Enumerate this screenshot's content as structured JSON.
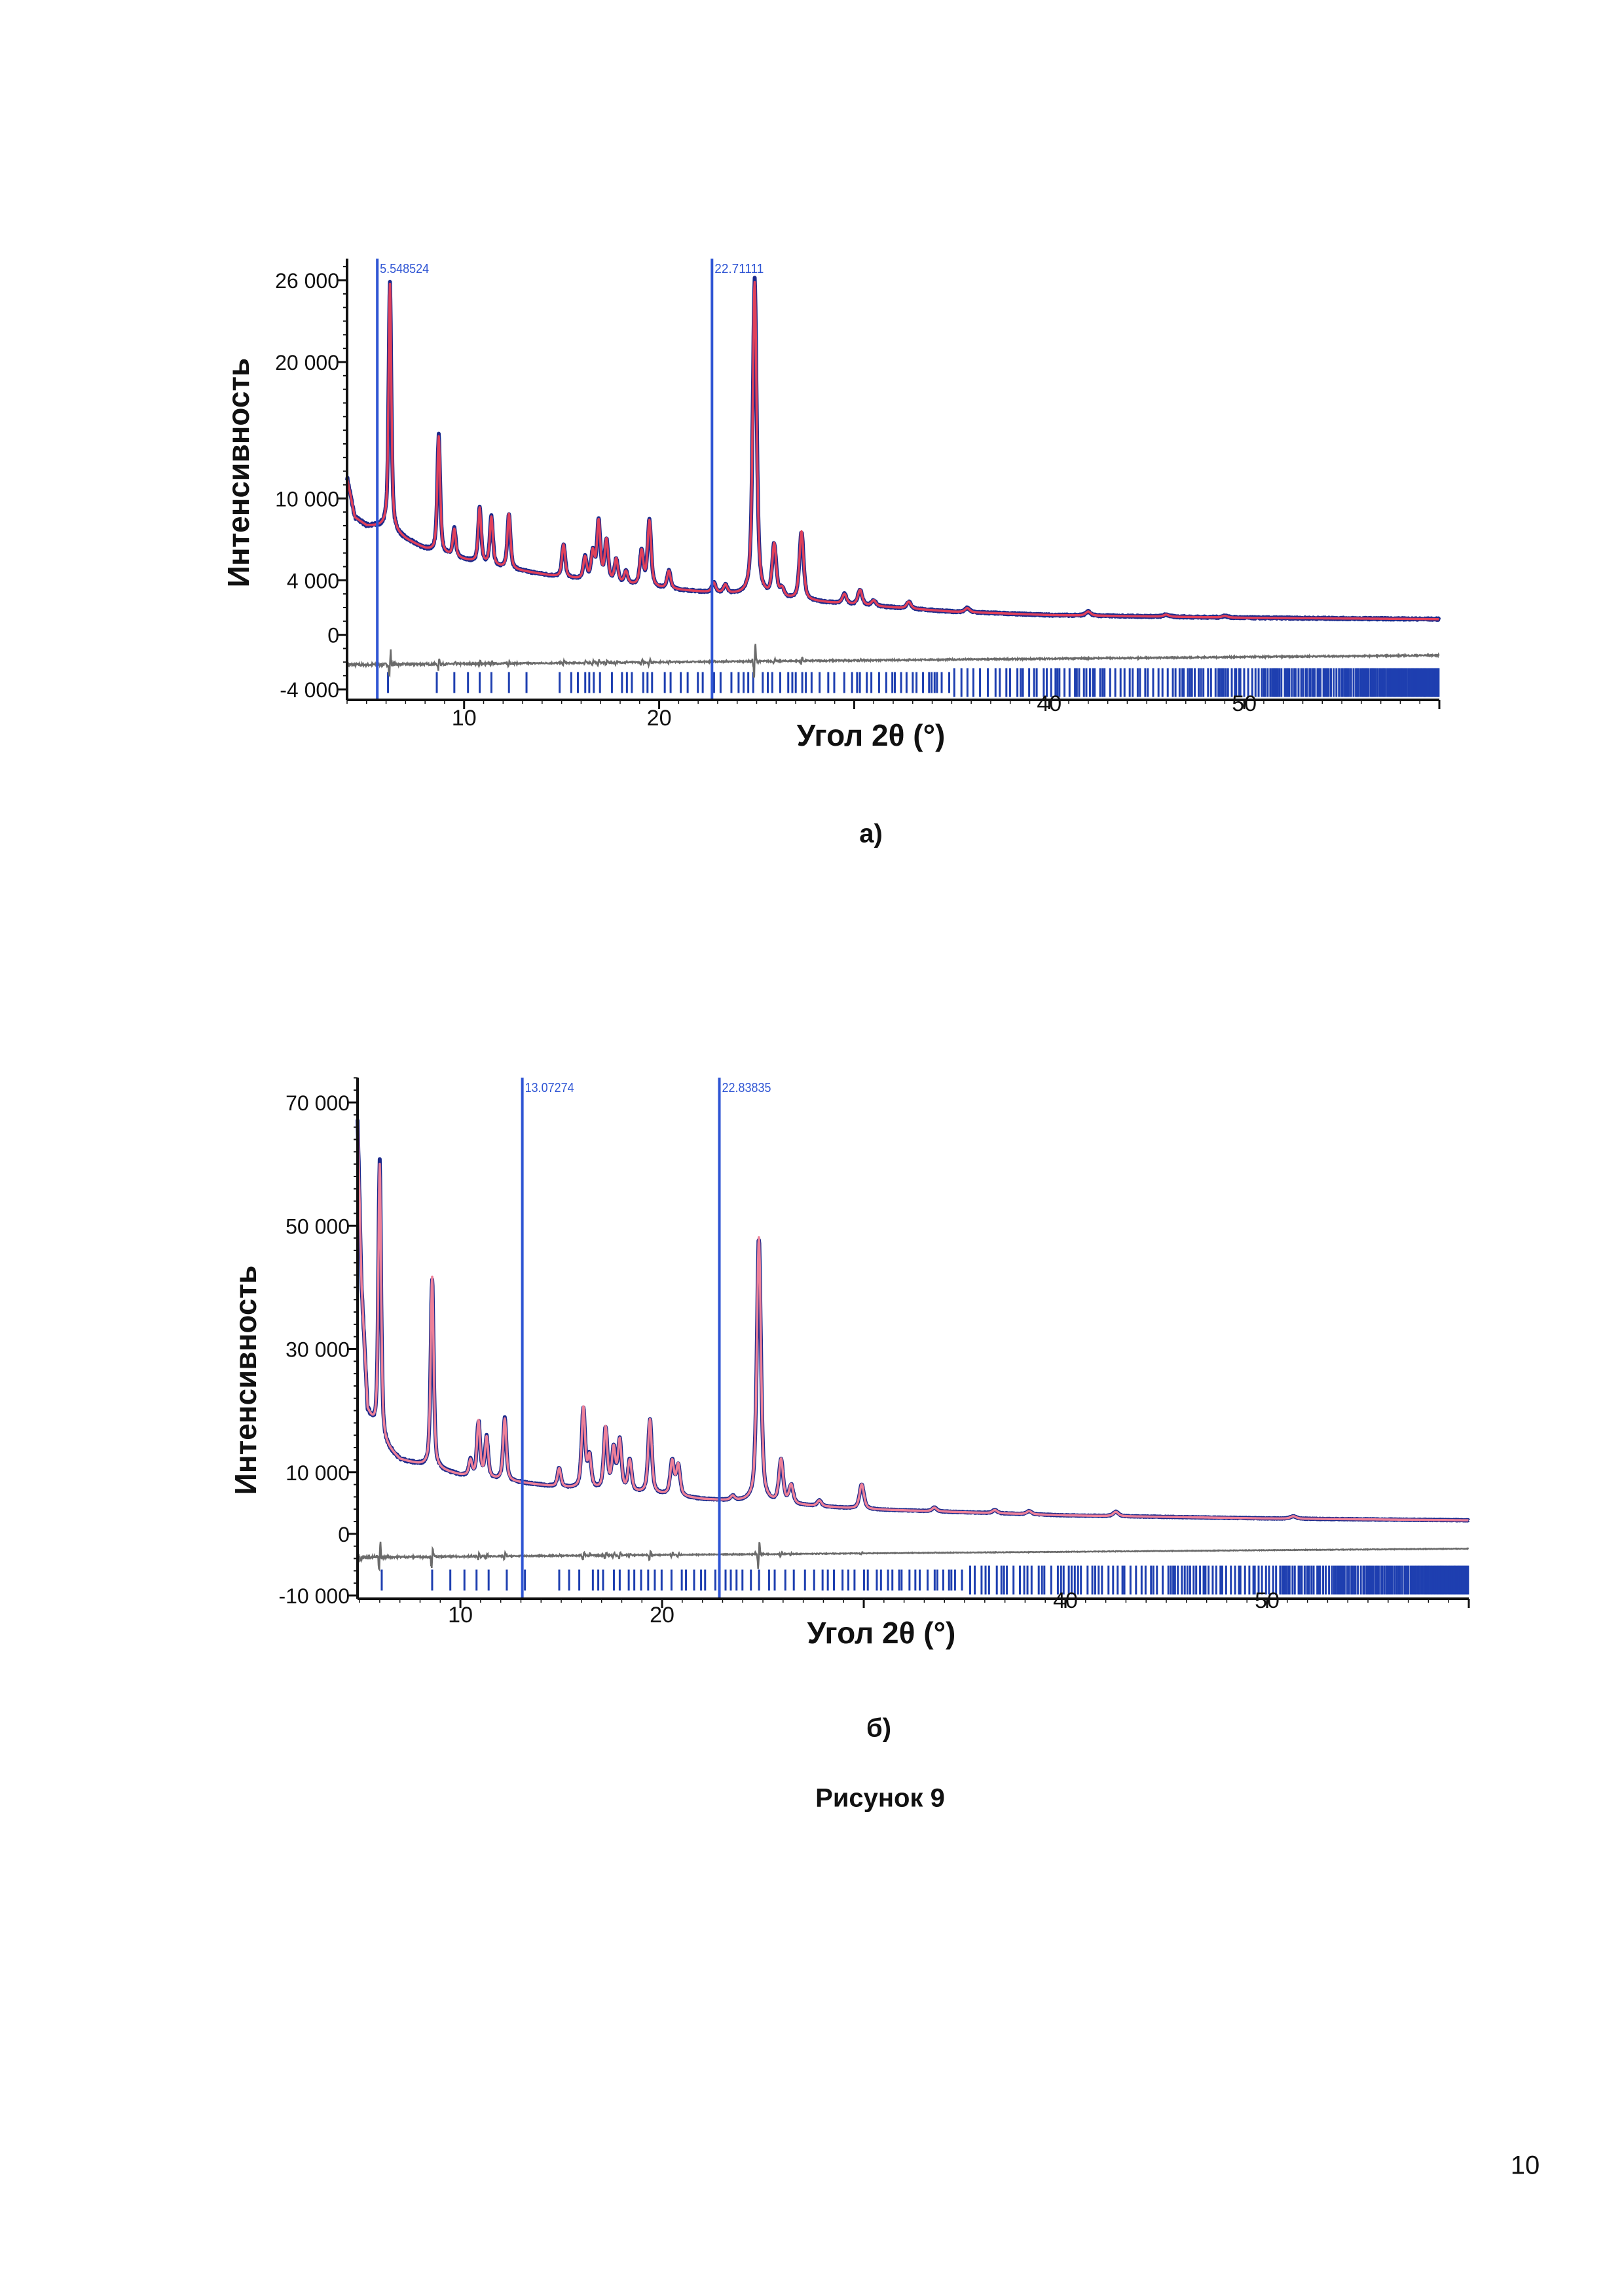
{
  "figure_caption": "Рисунок 9",
  "page_number": "10",
  "colors": {
    "observed": "#1c2a8c",
    "calc_a": "#e0405a",
    "calc_b": "#ee8098",
    "marker": "#2f55d4",
    "difference": "#6b6b6b",
    "reflections": "#1e3fb0"
  },
  "chart_data": [
    {
      "type": "line",
      "caption": "а)",
      "xlabel": "Угол 2θ (°)",
      "ylabel": "Интенсивность",
      "xlim": [
        4,
        60
      ],
      "ylim": [
        -4000,
        27500
      ],
      "xticks": [
        10,
        20,
        30,
        40,
        50,
        60
      ],
      "xtick_labels": [
        "10",
        "20",
        "",
        "40",
        "50",
        ""
      ],
      "yticks": [
        26000,
        20000,
        10000,
        4000,
        0,
        -4000
      ],
      "ytick_labels": [
        "26 000",
        "20 000",
        "10 000",
        "4 000",
        "0",
        "-4 000"
      ],
      "markers": [
        {
          "value": 5.55,
          "label": "5.548524"
        },
        {
          "value": 22.71,
          "label": "22.71111"
        }
      ],
      "background": [
        [
          4,
          11500
        ],
        [
          4.4,
          8600
        ],
        [
          5,
          8000
        ],
        [
          6,
          7900
        ],
        [
          7,
          7000
        ],
        [
          8,
          6300
        ],
        [
          10,
          5500
        ],
        [
          12,
          4900
        ],
        [
          15,
          4200
        ],
        [
          20,
          3400
        ],
        [
          25,
          2800
        ],
        [
          30,
          2200
        ],
        [
          35,
          1700
        ],
        [
          40,
          1450
        ],
        [
          50,
          1250
        ],
        [
          60,
          1150
        ]
      ],
      "peaks": [
        [
          6.2,
          18000
        ],
        [
          8.7,
          8500
        ],
        [
          9.5,
          2000
        ],
        [
          10.8,
          4000
        ],
        [
          11.4,
          3500
        ],
        [
          12.3,
          4000
        ],
        [
          15.1,
          2400
        ],
        [
          16.2,
          1600
        ],
        [
          16.6,
          2000
        ],
        [
          16.9,
          4300
        ],
        [
          17.3,
          3000
        ],
        [
          17.8,
          1700
        ],
        [
          18.3,
          900
        ],
        [
          19.1,
          2500
        ],
        [
          19.5,
          4800
        ],
        [
          20.5,
          1300
        ],
        [
          22.8,
          700
        ],
        [
          23.4,
          600
        ],
        [
          24.9,
          23000
        ],
        [
          25.9,
          3800
        ],
        [
          26.3,
          600
        ],
        [
          27.3,
          5000
        ],
        [
          29.5,
          700
        ],
        [
          30.3,
          1100
        ],
        [
          31.0,
          400
        ],
        [
          32.8,
          500
        ],
        [
          35.8,
          300
        ],
        [
          42.0,
          300
        ],
        [
          46,
          150
        ],
        [
          49,
          120
        ]
      ],
      "difference_baseline": [
        -2200,
        -1500
      ],
      "reflections_y": -3500
    },
    {
      "type": "line",
      "caption": "б)",
      "xlabel": "Угол 2θ (°)",
      "ylabel": "Интенсивность",
      "xlim": [
        4.9,
        60
      ],
      "ylim": [
        -10000,
        74000
      ],
      "xticks": [
        10,
        20,
        30,
        40,
        50,
        60
      ],
      "xtick_labels": [
        "10",
        "20",
        "",
        "40",
        "50",
        ""
      ],
      "yticks": [
        70000,
        50000,
        30000,
        10000,
        0,
        -10000
      ],
      "ytick_labels": [
        "70 000",
        "50 000",
        "30 000",
        "10 000",
        "0",
        "-10 000"
      ],
      "markers": [
        {
          "value": 13.07,
          "label": "13.07274"
        },
        {
          "value": 22.84,
          "label": "22.83835"
        }
      ],
      "background": [
        [
          4.9,
          68000
        ],
        [
          5.1,
          40000
        ],
        [
          5.4,
          20000
        ],
        [
          6,
          15000
        ],
        [
          7,
          12000
        ],
        [
          10,
          9500
        ],
        [
          15,
          7500
        ],
        [
          20,
          6300
        ],
        [
          22,
          5600
        ],
        [
          25,
          5000
        ],
        [
          30,
          4000
        ],
        [
          40,
          3000
        ],
        [
          50,
          2500
        ],
        [
          60,
          2200
        ]
      ],
      "peaks": [
        [
          6.0,
          45000
        ],
        [
          8.6,
          31000
        ],
        [
          10.5,
          2500
        ],
        [
          10.9,
          9000
        ],
        [
          11.3,
          6500
        ],
        [
          12.2,
          10000
        ],
        [
          14.9,
          3000
        ],
        [
          16.1,
          13000
        ],
        [
          16.4,
          5000
        ],
        [
          17.2,
          10000
        ],
        [
          17.6,
          6500
        ],
        [
          17.9,
          8000
        ],
        [
          18.4,
          5000
        ],
        [
          19.4,
          12000
        ],
        [
          20.5,
          5500
        ],
        [
          20.8,
          5000
        ],
        [
          23.5,
          700
        ],
        [
          24.8,
          43000
        ],
        [
          25.9,
          7000
        ],
        [
          26.4,
          3000
        ],
        [
          27.8,
          900
        ],
        [
          29.9,
          4000
        ],
        [
          33.5,
          600
        ],
        [
          36.5,
          500
        ],
        [
          38.2,
          500
        ],
        [
          42.5,
          700
        ],
        [
          51.3,
          400
        ]
      ],
      "difference_baseline": [
        -3800,
        -2400
      ],
      "reflections_y": -7500
    }
  ]
}
